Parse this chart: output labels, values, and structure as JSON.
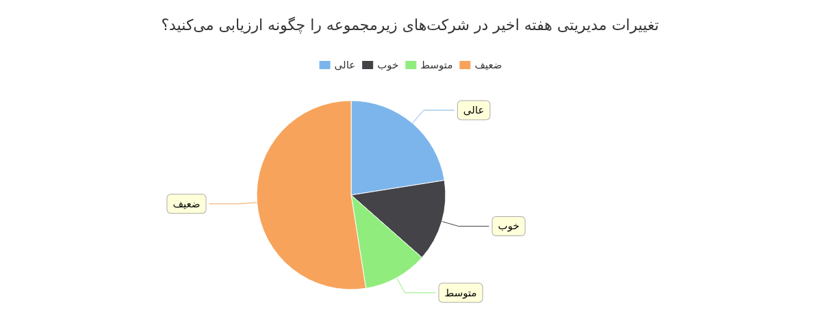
{
  "chart_data": {
    "type": "pie",
    "title": "تغییرات مدیریتی هفته اخیر در شرکت‌های زیرمجموعه را چگونه ارزیابی می‌کنید؟",
    "categories": [
      "عالی",
      "خوب",
      "متوسط",
      "ضعیف"
    ],
    "values": [
      22.5,
      14,
      11,
      52.5
    ],
    "colors": [
      "#7cb5ec",
      "#434348",
      "#90ed7d",
      "#f7a35c"
    ],
    "legend": "top"
  }
}
